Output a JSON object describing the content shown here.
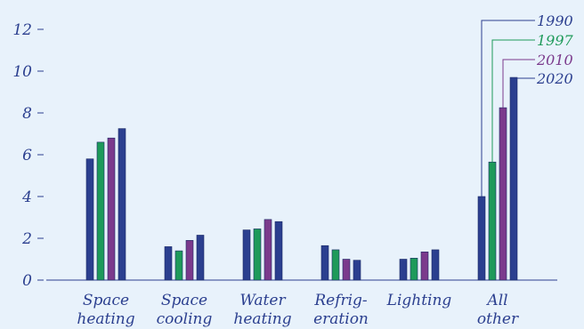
{
  "chart_data": {
    "type": "bar",
    "categories": [
      [
        "Space",
        "heating"
      ],
      [
        "Space",
        "cooling"
      ],
      [
        "Water",
        "heating"
      ],
      [
        "Refrig-",
        "eration"
      ],
      [
        "Lighting"
      ],
      [
        "All",
        "other"
      ]
    ],
    "series": [
      {
        "name": "1990",
        "color": "#2b3f8f",
        "values": [
          5.8,
          1.6,
          2.4,
          1.65,
          1.0,
          4.0
        ]
      },
      {
        "name": "1997",
        "color": "#1e9a5a",
        "values": [
          6.6,
          1.4,
          2.45,
          1.45,
          1.05,
          5.65
        ]
      },
      {
        "name": "2010",
        "color": "#7b3a8c",
        "values": [
          6.8,
          1.9,
          2.9,
          1.0,
          1.35,
          8.25
        ]
      },
      {
        "name": "2020",
        "color": "#2b3f8f",
        "values": [
          7.25,
          2.15,
          2.8,
          0.95,
          1.45,
          9.7
        ]
      }
    ],
    "yticks": [
      "0",
      "2",
      "4",
      "6",
      "8",
      "10",
      "12"
    ],
    "ylim": [
      0,
      13
    ],
    "legend": "top-right",
    "grid": false
  }
}
